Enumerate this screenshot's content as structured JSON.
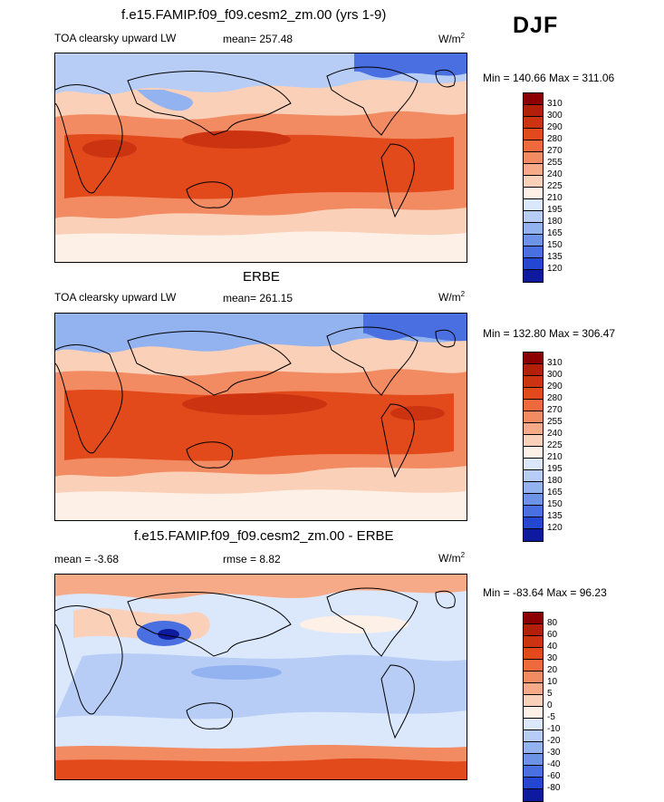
{
  "season": "DJF",
  "panels": [
    {
      "title": "f.e15.FAMIP.f09_f09.cesm2_zm.00 (yrs 1-9)",
      "left_label": "TOA clearsky upward LW",
      "mid_label": "mean= 257.48",
      "units": "W/m",
      "units_exp": "2",
      "minmax": "Min = 140.66 Max = 311.06",
      "colorbar": {
        "levels": [
          "310",
          "300",
          "290",
          "280",
          "270",
          "255",
          "240",
          "225",
          "210",
          "195",
          "180",
          "165",
          "150",
          "135",
          "120"
        ],
        "colors": [
          "#8b0000",
          "#b2200a",
          "#cc3311",
          "#e24a1c",
          "#ee6a3d",
          "#f38b62",
          "#f7aa87",
          "#fbd0b8",
          "#fdf0e6",
          "#dbe8fb",
          "#b7cdf6",
          "#92b2f0",
          "#6c93e8",
          "#4a6fe0",
          "#2447d2",
          "#0d1a9e"
        ]
      }
    },
    {
      "title": "ERBE",
      "left_label": "TOA clearsky upward LW",
      "mid_label": "mean= 261.15",
      "units": "W/m",
      "units_exp": "2",
      "minmax": "Min = 132.80 Max = 306.47",
      "colorbar": {
        "levels": [
          "310",
          "300",
          "290",
          "280",
          "270",
          "255",
          "240",
          "225",
          "210",
          "195",
          "180",
          "165",
          "150",
          "135",
          "120"
        ],
        "colors": [
          "#8b0000",
          "#b2200a",
          "#cc3311",
          "#e24a1c",
          "#ee6a3d",
          "#f38b62",
          "#f7aa87",
          "#fbd0b8",
          "#fdf0e6",
          "#dbe8fb",
          "#b7cdf6",
          "#92b2f0",
          "#6c93e8",
          "#4a6fe0",
          "#2447d2",
          "#0d1a9e"
        ]
      }
    },
    {
      "title": "f.e15.FAMIP.f09_f09.cesm2_zm.00 - ERBE",
      "left_label": "mean =  -3.68",
      "mid_label": "rmse =   8.82",
      "units": "W/m",
      "units_exp": "2",
      "minmax": "Min = -83.64 Max =  96.23",
      "colorbar": {
        "levels": [
          "80",
          "60",
          "40",
          "30",
          "20",
          "10",
          "5",
          "0",
          "-5",
          "-10",
          "-20",
          "-30",
          "-40",
          "-60",
          "-80"
        ],
        "colors": [
          "#8b0000",
          "#b2200a",
          "#cc3311",
          "#e24a1c",
          "#ee6a3d",
          "#f38b62",
          "#f7aa87",
          "#fbd0b8",
          "#fdf0e6",
          "#dbe8fb",
          "#b7cdf6",
          "#92b2f0",
          "#6c93e8",
          "#4a6fe0",
          "#2447d2",
          "#0d1a9e"
        ]
      }
    }
  ]
}
